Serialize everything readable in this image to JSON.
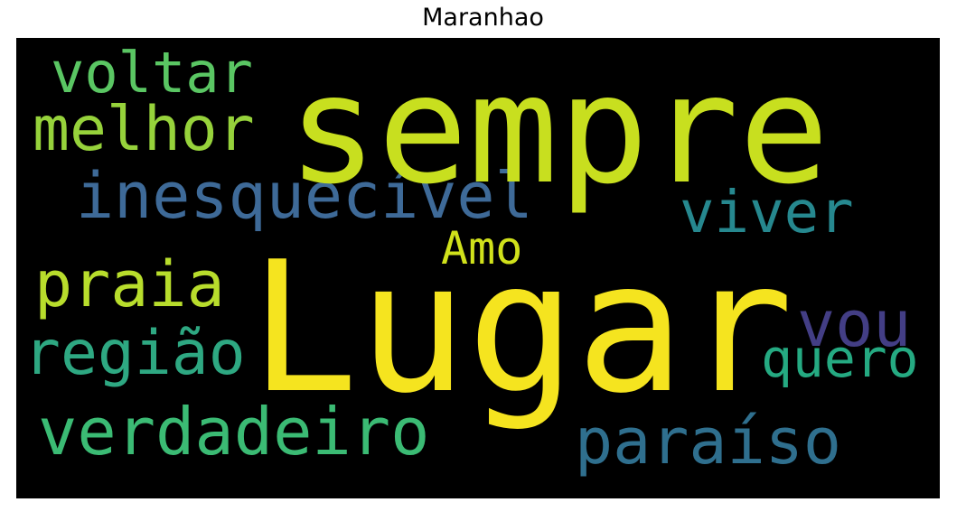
{
  "title": "Maranhao",
  "cloud": {
    "background": "#000000",
    "words": [
      {
        "key": "sempre",
        "text": "sempre",
        "color": "#c8df1f"
      },
      {
        "key": "lugar",
        "text": "Lugar",
        "color": "#f5e41f"
      },
      {
        "key": "voltar",
        "text": "voltar",
        "color": "#5ac663"
      },
      {
        "key": "melhor",
        "text": "melhor",
        "color": "#96d23b"
      },
      {
        "key": "inesquecivel",
        "text": "inesquecível",
        "color": "#3e6a98"
      },
      {
        "key": "viver",
        "text": "viver",
        "color": "#26888f"
      },
      {
        "key": "amo",
        "text": "Amo",
        "color": "#d0e11b"
      },
      {
        "key": "praia",
        "text": "praia",
        "color": "#b8dd2c"
      },
      {
        "key": "vou",
        "text": "vou",
        "color": "#433e85"
      },
      {
        "key": "regiao",
        "text": "região",
        "color": "#2ea882"
      },
      {
        "key": "quero",
        "text": "quero",
        "color": "#25aa82"
      },
      {
        "key": "verdadeiro",
        "text": "verdadeiro",
        "color": "#3bbb74"
      },
      {
        "key": "paraiso",
        "text": "paraíso",
        "color": "#2f6f8e"
      }
    ]
  }
}
